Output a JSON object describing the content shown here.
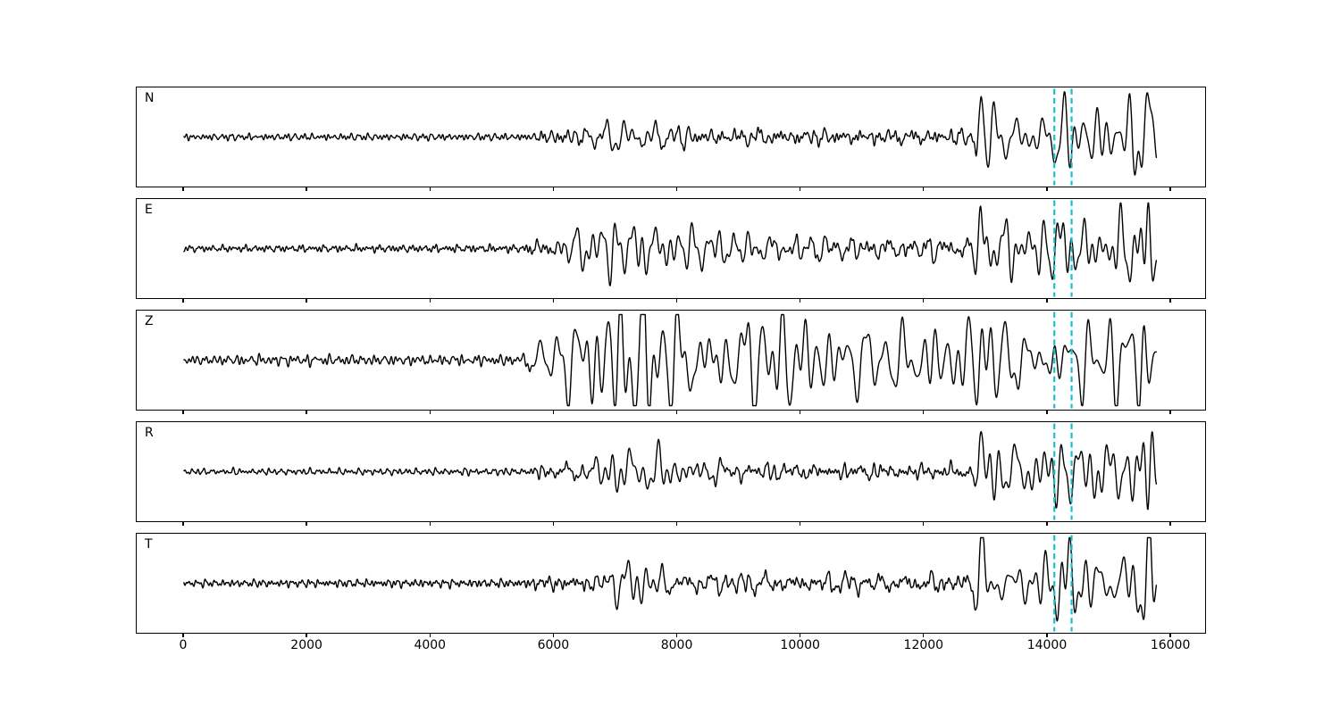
{
  "chart_data": {
    "type": "line",
    "title": "",
    "xlabel": "",
    "ylabel": "",
    "grid": false,
    "background_color": "#ffffff",
    "trace_color": "#000000",
    "xlim": [
      -790,
      16580
    ],
    "x_max": 15790,
    "x_tick_values": [
      0,
      2000,
      4000,
      6000,
      8000,
      10000,
      12000,
      14000,
      16000
    ],
    "x_ticks": [
      "0",
      "2000",
      "4000",
      "6000",
      "8000",
      "10000",
      "12000",
      "14000",
      "16000"
    ],
    "pick_lines": {
      "x": [
        14130,
        14410
      ],
      "color": "#17becf",
      "style": "dashed"
    },
    "panels": [
      {
        "label": "N",
        "seed": 11,
        "spike": {
          "x": 12925,
          "amp": 0.82,
          "width": 80
        },
        "envelope": [
          [
            0,
            0.055
          ],
          [
            5600,
            0.06
          ],
          [
            5900,
            0.11
          ],
          [
            6400,
            0.17
          ],
          [
            7100,
            0.26
          ],
          [
            7700,
            0.2
          ],
          [
            8600,
            0.16
          ],
          [
            9500,
            0.15
          ],
          [
            11000,
            0.14
          ],
          [
            12400,
            0.15
          ],
          [
            12850,
            0.17
          ],
          [
            13100,
            0.32
          ],
          [
            13500,
            0.27
          ],
          [
            13950,
            0.25
          ],
          [
            14200,
            0.48
          ],
          [
            14450,
            0.32
          ],
          [
            14900,
            0.3
          ],
          [
            15250,
            0.38
          ],
          [
            15550,
            0.6
          ],
          [
            15700,
            0.55
          ],
          [
            15790,
            0.3
          ]
        ]
      },
      {
        "label": "E",
        "seed": 23,
        "spike": {
          "x": 12920,
          "amp": 0.78,
          "width": 85
        },
        "envelope": [
          [
            0,
            0.055
          ],
          [
            5500,
            0.065
          ],
          [
            5850,
            0.18
          ],
          [
            6300,
            0.24
          ],
          [
            7200,
            0.36
          ],
          [
            7800,
            0.28
          ],
          [
            8700,
            0.24
          ],
          [
            9800,
            0.21
          ],
          [
            11200,
            0.19
          ],
          [
            12450,
            0.18
          ],
          [
            12850,
            0.2
          ],
          [
            13100,
            0.38
          ],
          [
            13600,
            0.3
          ],
          [
            14000,
            0.28
          ],
          [
            14250,
            0.45
          ],
          [
            14600,
            0.32
          ],
          [
            15000,
            0.32
          ],
          [
            15400,
            0.45
          ],
          [
            15650,
            0.6
          ],
          [
            15790,
            0.32
          ]
        ]
      },
      {
        "label": "Z",
        "seed": 37,
        "spike": {
          "x": 12930,
          "amp": 0.55,
          "width": 90
        },
        "envelope": [
          [
            0,
            0.075
          ],
          [
            1200,
            0.1
          ],
          [
            3500,
            0.09
          ],
          [
            5500,
            0.11
          ],
          [
            5850,
            0.33
          ],
          [
            6300,
            0.6
          ],
          [
            7150,
            0.78
          ],
          [
            7500,
            0.66
          ],
          [
            8300,
            0.62
          ],
          [
            9200,
            0.55
          ],
          [
            10200,
            0.46
          ],
          [
            11200,
            0.42
          ],
          [
            12100,
            0.4
          ],
          [
            12800,
            0.37
          ],
          [
            13100,
            0.48
          ],
          [
            13500,
            0.44
          ],
          [
            14000,
            0.42
          ],
          [
            14600,
            0.4
          ],
          [
            15100,
            0.42
          ],
          [
            15550,
            0.6
          ],
          [
            15790,
            0.35
          ]
        ]
      },
      {
        "label": "R",
        "seed": 49,
        "spike": {
          "x": 12915,
          "amp": 0.8,
          "width": 80
        },
        "envelope": [
          [
            0,
            0.05
          ],
          [
            5500,
            0.06
          ],
          [
            5900,
            0.13
          ],
          [
            6500,
            0.2
          ],
          [
            7300,
            0.3
          ],
          [
            7900,
            0.23
          ],
          [
            8900,
            0.18
          ],
          [
            10000,
            0.15
          ],
          [
            11500,
            0.14
          ],
          [
            12450,
            0.14
          ],
          [
            12850,
            0.16
          ],
          [
            13100,
            0.34
          ],
          [
            13600,
            0.28
          ],
          [
            14000,
            0.26
          ],
          [
            14250,
            0.5
          ],
          [
            14550,
            0.33
          ],
          [
            15000,
            0.3
          ],
          [
            15400,
            0.45
          ],
          [
            15650,
            0.55
          ],
          [
            15790,
            0.3
          ]
        ]
      },
      {
        "label": "T",
        "seed": 58,
        "spike": {
          "x": 12925,
          "amp": 0.88,
          "width": 85
        },
        "envelope": [
          [
            0,
            0.06
          ],
          [
            5400,
            0.07
          ],
          [
            5900,
            0.12
          ],
          [
            6500,
            0.16
          ],
          [
            7300,
            0.27
          ],
          [
            8100,
            0.19
          ],
          [
            9200,
            0.18
          ],
          [
            10300,
            0.17
          ],
          [
            11400,
            0.19
          ],
          [
            12350,
            0.16
          ],
          [
            12850,
            0.18
          ],
          [
            13100,
            0.38
          ],
          [
            13650,
            0.3
          ],
          [
            14050,
            0.3
          ],
          [
            14300,
            0.45
          ],
          [
            14700,
            0.32
          ],
          [
            15200,
            0.4
          ],
          [
            15550,
            0.62
          ],
          [
            15700,
            0.55
          ],
          [
            15790,
            0.32
          ]
        ]
      }
    ]
  }
}
